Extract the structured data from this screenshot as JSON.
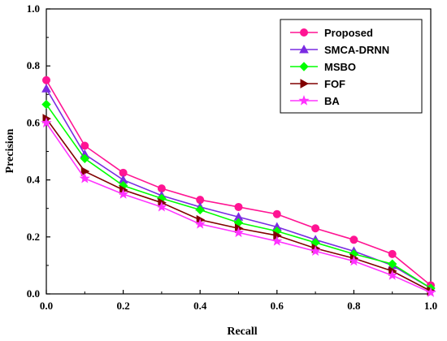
{
  "chart_data": {
    "type": "line",
    "title": "",
    "xlabel": "Recall",
    "ylabel": "Precision",
    "xlim": [
      0.0,
      1.0
    ],
    "ylim": [
      0.0,
      1.0
    ],
    "x_ticks": [
      "0.0",
      "0.2",
      "0.4",
      "0.6",
      "0.8",
      "1.0"
    ],
    "y_ticks": [
      "0.0",
      "0.2",
      "0.4",
      "0.6",
      "0.8",
      "1.0"
    ],
    "grid": false,
    "legend_position": "top-right",
    "x": [
      0.0,
      0.1,
      0.2,
      0.3,
      0.4,
      0.5,
      0.6,
      0.7,
      0.8,
      0.9,
      1.0
    ],
    "series": [
      {
        "name": "Proposed",
        "color": "#ff1493",
        "marker": "circle",
        "values": [
          0.75,
          0.52,
          0.425,
          0.37,
          0.33,
          0.305,
          0.28,
          0.23,
          0.19,
          0.14,
          0.03
        ]
      },
      {
        "name": "SMCA-DRNN",
        "color": "#7a2be2",
        "marker": "triangle",
        "values": [
          0.72,
          0.49,
          0.4,
          0.345,
          0.305,
          0.27,
          0.235,
          0.19,
          0.15,
          0.1,
          0.02
        ]
      },
      {
        "name": "MSBO",
        "color": "#00ff00",
        "marker": "diamond",
        "values": [
          0.665,
          0.475,
          0.38,
          0.335,
          0.295,
          0.25,
          0.22,
          0.18,
          0.14,
          0.105,
          0.02
        ]
      },
      {
        "name": "FOF",
        "color": "#800000",
        "marker": "triangle-right",
        "values": [
          0.615,
          0.43,
          0.365,
          0.32,
          0.26,
          0.23,
          0.205,
          0.16,
          0.125,
          0.08,
          0.01
        ]
      },
      {
        "name": "BA",
        "color": "#ff33ff",
        "marker": "star",
        "values": [
          0.6,
          0.405,
          0.35,
          0.305,
          0.245,
          0.215,
          0.185,
          0.15,
          0.115,
          0.065,
          0.005
        ]
      }
    ]
  }
}
